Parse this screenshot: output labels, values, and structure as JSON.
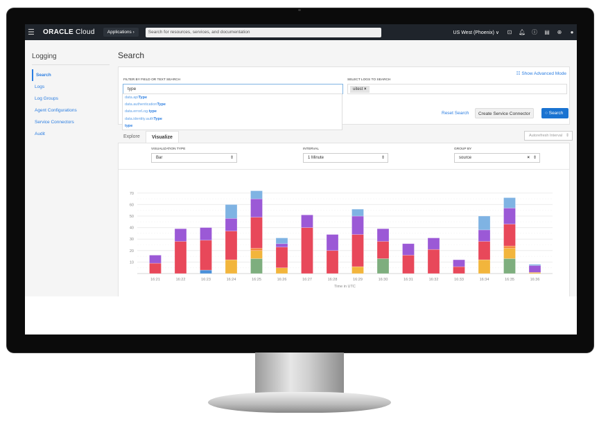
{
  "header": {
    "logo_bold": "ORACLE",
    "logo_light": " Cloud",
    "applications": "Applications ›",
    "search_placeholder": "Search for resources, services, and documentation",
    "region": "US West (Phoenix) ∨",
    "icons": [
      "terminal-icon",
      "bell-icon",
      "help-icon",
      "chat-icon",
      "globe-icon",
      "user-icon"
    ]
  },
  "sidebar": {
    "title": "Logging",
    "items": [
      {
        "label": "Search",
        "active": true
      },
      {
        "label": "Logs"
      },
      {
        "label": "Log Groups"
      },
      {
        "label": "Agent Configurations"
      },
      {
        "label": "Service Connectors"
      },
      {
        "label": "Audit"
      }
    ]
  },
  "page": {
    "title": "Search"
  },
  "filter": {
    "label": "FILTER BY FIELD OR TEXT SEARCH",
    "value": "type",
    "suggestions": [
      {
        "prefix": "data.api",
        "match": "Type"
      },
      {
        "prefix": "data.authentication",
        "match": "Type"
      },
      {
        "prefix": "data.errorLog.",
        "match": "type"
      },
      {
        "prefix": "data.identity.auth",
        "match": "Type"
      },
      {
        "prefix": "",
        "match": "type"
      }
    ]
  },
  "logs": {
    "label": "SELECT LOGS TO SEARCH",
    "chips": [
      "uitest"
    ]
  },
  "actions": {
    "advanced": "Show Advanced Mode",
    "reset": "Reset Search",
    "connector": "Create Service Connector",
    "search": "Search"
  },
  "tabs": [
    {
      "label": "Explore"
    },
    {
      "label": "Visualize",
      "active": true
    }
  ],
  "autorefresh": "Autorefresh Interval",
  "viz": {
    "type_label": "VISUALIZATION TYPE",
    "type_value": "Bar",
    "interval_label": "INTERVAL",
    "interval_value": "1 Minute",
    "group_label": "GROUP BY",
    "group_value": "source"
  },
  "chart_data": {
    "type": "bar",
    "stacked": true,
    "xlabel": "Time in UTC",
    "ylabel": "",
    "ylim": [
      0,
      75
    ],
    "yticks": [
      10,
      20,
      30,
      40,
      50,
      60,
      70
    ],
    "grid": true,
    "categories": [
      "16:21",
      "16:22",
      "16:23",
      "16:24",
      "16:25",
      "16:26",
      "16:27",
      "16:28",
      "16:29",
      "16:30",
      "16:31",
      "16:32",
      "16:33",
      "16:34",
      "16:35",
      "16:36"
    ],
    "series": [
      {
        "color": "#4a90d9",
        "values": [
          0,
          0,
          3,
          0,
          0,
          0,
          0,
          0,
          0,
          0,
          0,
          0,
          0,
          0,
          0,
          0
        ]
      },
      {
        "color": "#7eae7e",
        "values": [
          0,
          0,
          0,
          0,
          13,
          0,
          0,
          0,
          0,
          13,
          0,
          0,
          0,
          0,
          13,
          0
        ]
      },
      {
        "color": "#f2b53c",
        "values": [
          0,
          0,
          0,
          12,
          7,
          5,
          0,
          0,
          6,
          0,
          0,
          0,
          0,
          12,
          9,
          1
        ]
      },
      {
        "color": "#f5873a",
        "values": [
          0,
          0,
          0,
          0,
          2,
          0,
          0,
          0,
          0,
          0,
          0,
          0,
          0,
          0,
          2,
          0
        ]
      },
      {
        "color": "#e8485a",
        "values": [
          9,
          28,
          26,
          25,
          27,
          18,
          40,
          20,
          28,
          15,
          16,
          21,
          6,
          16,
          19,
          0
        ]
      },
      {
        "color": "#9b59d6",
        "values": [
          7,
          11,
          11,
          11,
          16,
          3,
          11,
          14,
          16,
          11,
          10,
          10,
          6,
          10,
          14,
          6
        ]
      },
      {
        "color": "#7fb3e3",
        "values": [
          0,
          0,
          0,
          12,
          7,
          5,
          0,
          0,
          6,
          0,
          0,
          0,
          0,
          12,
          9,
          1
        ]
      }
    ]
  }
}
